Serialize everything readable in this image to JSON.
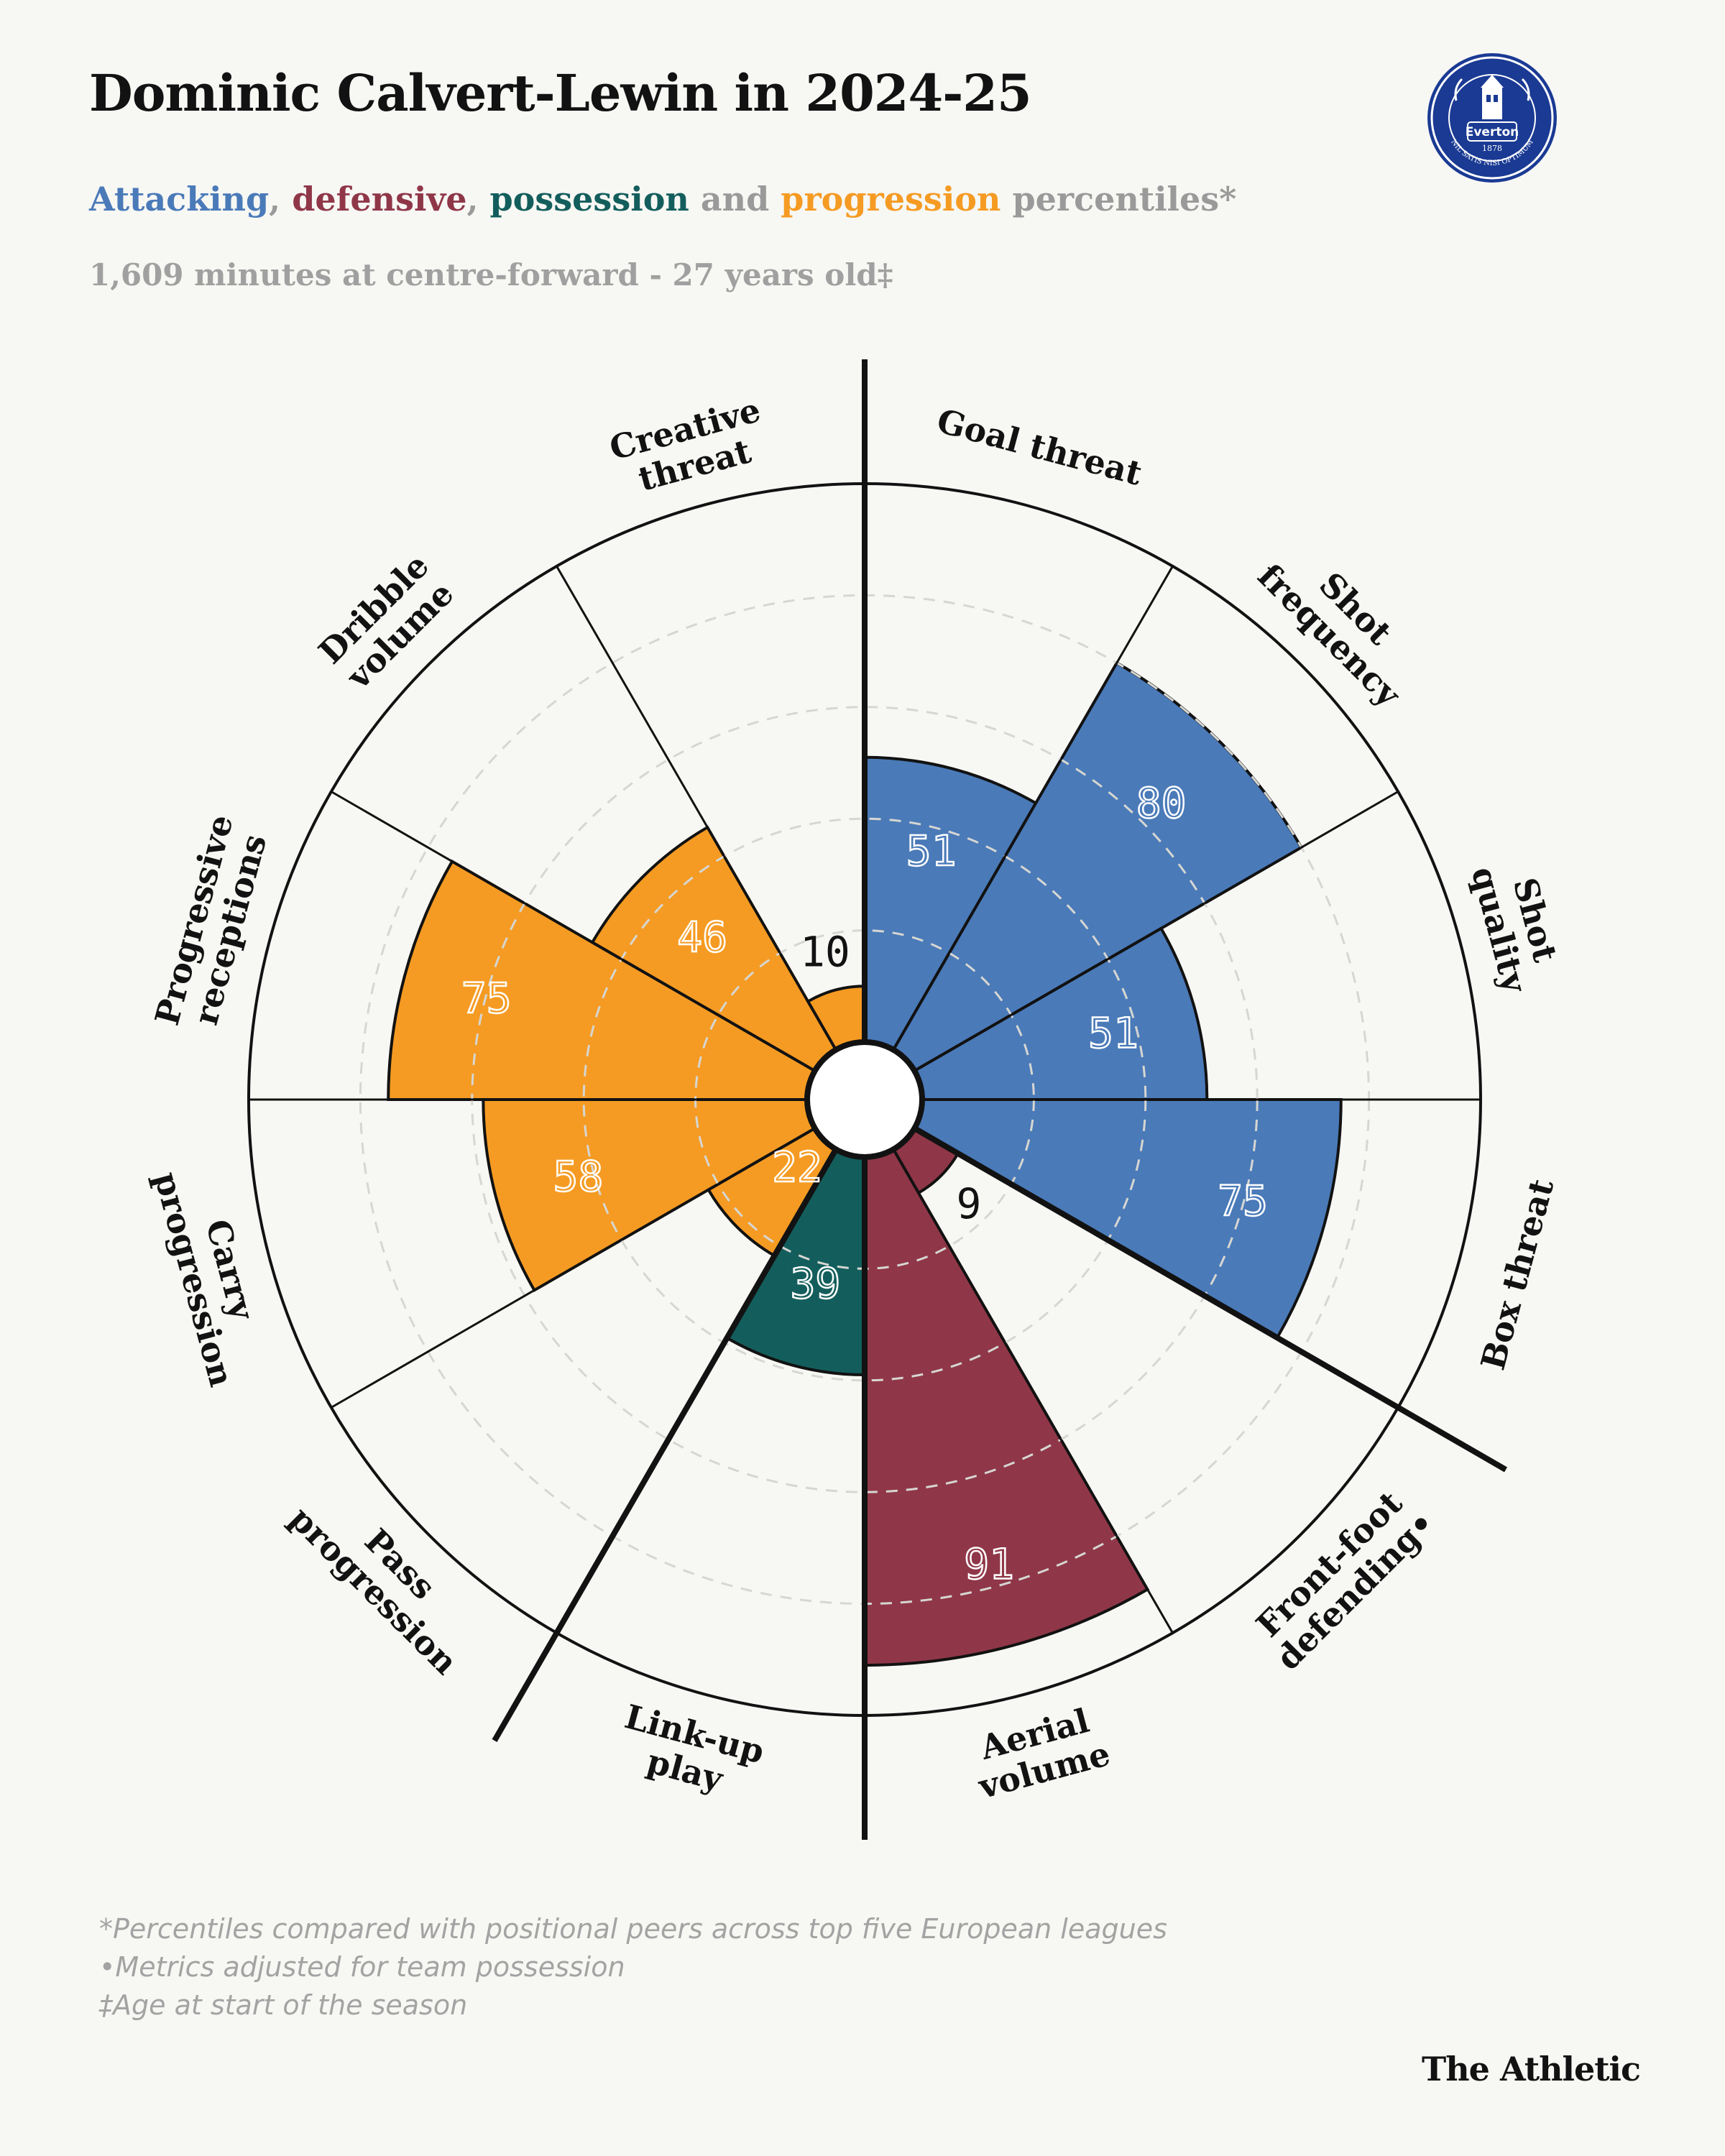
{
  "header": {
    "title": "Dominic Calvert-Lewin in 2024-25",
    "subtitle": {
      "attacking": "Attacking",
      "sep1": ", ",
      "defensive": "defensive",
      "sep2": ", ",
      "possession": "possession",
      "and": " and ",
      "progression": "progression",
      "rest": " percentiles*"
    },
    "minutes_line": "1,609 minutes at centre-forward - 27 years old‡"
  },
  "crest": {
    "name": "Everton",
    "year": "1878",
    "motto": "NIL SATIS NISI OPTIMUM"
  },
  "colors": {
    "attacking": "#4a7ab8",
    "defensive": "#8f3748",
    "possession": "#135e5c",
    "progression": "#f59b23"
  },
  "chart_data": {
    "type": "polar-bar",
    "scale_max": 100,
    "gridlines": [
      20,
      40,
      60,
      80
    ],
    "categories": [
      "Goal threat",
      "Shot frequency",
      "Shot quality",
      "Box threat",
      "Front-foot defending•",
      "Aerial volume",
      "Link-up play",
      "Pass progression",
      "Carry progression",
      "Progressive receptions",
      "Dribble volume",
      "Creative threat"
    ],
    "label_lines": [
      [
        "Goal threat"
      ],
      [
        "Shot",
        "frequency"
      ],
      [
        "Shot",
        "quality"
      ],
      [
        "Box threat"
      ],
      [
        "Front-foot",
        "defending•"
      ],
      [
        "Aerial",
        "volume"
      ],
      [
        "Link-up",
        "play"
      ],
      [
        "Pass",
        "progression"
      ],
      [
        "Carry",
        "progression"
      ],
      [
        "Progressive",
        "receptions"
      ],
      [
        "Dribble",
        "volume"
      ],
      [
        "Creative",
        "threat"
      ]
    ],
    "groups": [
      "attacking",
      "attacking",
      "attacking",
      "attacking",
      "defensive",
      "defensive",
      "possession",
      "progression",
      "progression",
      "progression",
      "progression",
      "progression"
    ],
    "values": [
      51,
      80,
      51,
      75,
      9,
      91,
      39,
      22,
      58,
      75,
      46,
      10
    ]
  },
  "footnotes": [
    "*Percentiles compared with positional peers across top five European leagues",
    "•Metrics adjusted for team possession",
    "‡Age at start of the season"
  ],
  "brand": "The Athletic"
}
